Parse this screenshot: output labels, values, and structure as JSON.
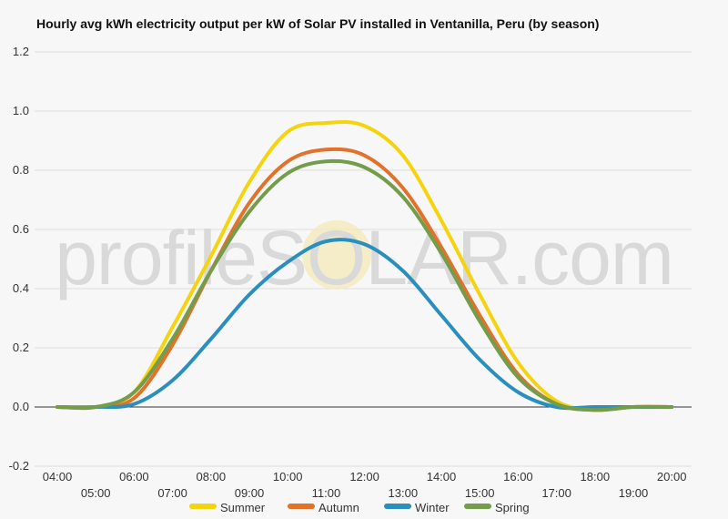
{
  "page": {
    "watermark": "profileSOLAR.com"
  },
  "chart_data": {
    "type": "line",
    "title": "Hourly avg kWh electricity output per kW of Solar PV installed in Ventanilla, Peru (by season)",
    "xlabel": "",
    "ylabel": "",
    "x": [
      "04:00",
      "05:00",
      "06:00",
      "07:00",
      "08:00",
      "09:00",
      "10:00",
      "11:00",
      "12:00",
      "13:00",
      "14:00",
      "15:00",
      "16:00",
      "17:00",
      "18:00",
      "19:00",
      "20:00"
    ],
    "y_ticks": [
      -0.2,
      0.0,
      0.2,
      0.4,
      0.6,
      0.8,
      1.0,
      1.2
    ],
    "y_tick_labels": [
      "-0.2",
      "0.0",
      "0.2",
      "0.4",
      "0.6",
      "0.8",
      "1.0",
      "1.2"
    ],
    "ylim": [
      -0.2,
      1.2
    ],
    "grid": true,
    "legend_position": "bottom",
    "series": [
      {
        "name": "Summer",
        "color": "#f5d40f",
        "values": [
          0.0,
          0.0,
          0.05,
          0.27,
          0.51,
          0.76,
          0.93,
          0.96,
          0.95,
          0.85,
          0.63,
          0.38,
          0.15,
          0.02,
          -0.01,
          0.0,
          0.0
        ]
      },
      {
        "name": "Autumn",
        "color": "#e2722a",
        "values": [
          0.0,
          0.0,
          0.03,
          0.21,
          0.46,
          0.69,
          0.83,
          0.87,
          0.85,
          0.74,
          0.54,
          0.31,
          0.11,
          0.01,
          -0.01,
          0.0,
          0.0
        ]
      },
      {
        "name": "Winter",
        "color": "#2b8fbd",
        "values": [
          0.0,
          0.0,
          0.01,
          0.09,
          0.23,
          0.38,
          0.49,
          0.56,
          0.55,
          0.46,
          0.31,
          0.16,
          0.05,
          0.0,
          0.0,
          0.0,
          0.0
        ]
      },
      {
        "name": "Spring",
        "color": "#739c4b",
        "values": [
          0.0,
          0.0,
          0.05,
          0.23,
          0.46,
          0.66,
          0.79,
          0.83,
          0.81,
          0.71,
          0.52,
          0.29,
          0.1,
          0.01,
          -0.01,
          0.0,
          0.0
        ]
      }
    ]
  }
}
